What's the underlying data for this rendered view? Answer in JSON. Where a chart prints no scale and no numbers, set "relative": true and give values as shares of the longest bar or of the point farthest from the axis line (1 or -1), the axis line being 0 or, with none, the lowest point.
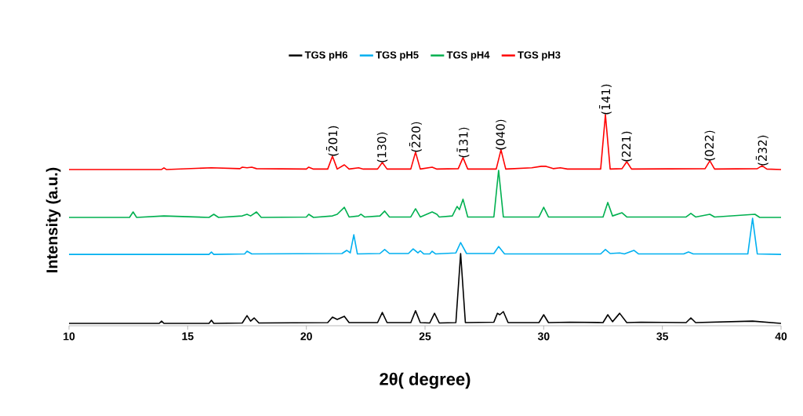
{
  "chart_data": {
    "type": "line",
    "relative": true,
    "xlabel": "2θ( degree)",
    "ylabel": "Intensity (a.u.)",
    "xlim": [
      10,
      40
    ],
    "xticks": [
      10,
      15,
      20,
      25,
      30,
      35,
      40
    ],
    "legend": "top",
    "grid": false,
    "marker": "none",
    "line_style": "solid",
    "series": [
      {
        "name": "TGS pH6",
        "color": "#000000",
        "x": [
          10,
          13.8,
          13.9,
          14.0,
          15.9,
          16.0,
          16.1,
          17.3,
          17.5,
          17.65,
          17.8,
          18.0,
          20.9,
          21.1,
          21.3,
          21.6,
          21.8,
          23.0,
          23.2,
          23.4,
          24.4,
          24.6,
          24.8,
          25.2,
          25.4,
          25.6,
          26.3,
          26.5,
          26.7,
          27.9,
          28.05,
          28.15,
          28.3,
          28.5,
          29.8,
          30.0,
          30.2,
          31.1,
          32.5,
          32.7,
          32.9,
          33.2,
          33.5,
          34.1,
          36.0,
          36.2,
          36.4,
          38.8,
          40
        ],
        "values": [
          0.011,
          0.011,
          0.022,
          0.011,
          0.011,
          0.026,
          0.011,
          0.013,
          0.048,
          0.022,
          0.037,
          0.013,
          0.015,
          0.041,
          0.03,
          0.045,
          0.015,
          0.015,
          0.063,
          0.015,
          0.015,
          0.071,
          0.015,
          0.013,
          0.059,
          0.013,
          0.015,
          0.342,
          0.015,
          0.017,
          0.059,
          0.052,
          0.067,
          0.015,
          0.015,
          0.052,
          0.015,
          0.017,
          0.015,
          0.052,
          0.019,
          0.059,
          0.015,
          0.017,
          0.015,
          0.037,
          0.015,
          0.022,
          0.011
        ]
      },
      {
        "name": "TGS pH5",
        "color": "#00b0f0",
        "x": [
          10,
          15.9,
          16.0,
          16.1,
          17.4,
          17.5,
          17.7,
          21.5,
          21.7,
          21.85,
          22.0,
          22.15,
          23.1,
          23.3,
          23.5,
          24.3,
          24.5,
          24.7,
          24.8,
          24.95,
          25.2,
          25.3,
          25.45,
          26.3,
          26.5,
          26.75,
          27.9,
          28.1,
          28.35,
          32.4,
          32.6,
          32.8,
          33.2,
          33.4,
          33.8,
          34.0,
          35.9,
          36.1,
          36.3,
          38.6,
          38.8,
          39.0,
          40
        ],
        "values": [
          0.338,
          0.338,
          0.349,
          0.338,
          0.34,
          0.353,
          0.34,
          0.342,
          0.357,
          0.345,
          0.431,
          0.34,
          0.342,
          0.361,
          0.342,
          0.342,
          0.364,
          0.345,
          0.355,
          0.34,
          0.34,
          0.353,
          0.34,
          0.345,
          0.394,
          0.342,
          0.342,
          0.375,
          0.34,
          0.34,
          0.361,
          0.342,
          0.345,
          0.34,
          0.357,
          0.34,
          0.34,
          0.349,
          0.34,
          0.34,
          0.509,
          0.34,
          0.338
        ]
      },
      {
        "name": "TGS pH4",
        "color": "#00b050",
        "x": [
          10,
          12.55,
          12.7,
          12.85,
          14.0,
          15.9,
          16.1,
          16.3,
          17.3,
          17.5,
          17.65,
          17.9,
          18.1,
          20.0,
          20.1,
          20.3,
          21.1,
          21.3,
          21.6,
          21.8,
          22.2,
          22.3,
          22.45,
          23.1,
          23.3,
          23.5,
          24.4,
          24.6,
          24.8,
          25.3,
          25.5,
          25.6,
          26.15,
          26.35,
          26.45,
          26.6,
          26.8,
          27.9,
          28.1,
          28.3,
          29.8,
          30.0,
          30.2,
          32.5,
          32.7,
          32.9,
          33.3,
          33.5,
          36.0,
          36.2,
          36.4,
          37.0,
          37.2,
          38.9,
          39.1,
          40
        ],
        "values": [
          0.513,
          0.513,
          0.539,
          0.513,
          0.52,
          0.513,
          0.528,
          0.513,
          0.52,
          0.528,
          0.52,
          0.539,
          0.513,
          0.515,
          0.528,
          0.513,
          0.52,
          0.528,
          0.561,
          0.515,
          0.52,
          0.528,
          0.515,
          0.52,
          0.543,
          0.515,
          0.515,
          0.554,
          0.515,
          0.539,
          0.528,
          0.515,
          0.52,
          0.565,
          0.55,
          0.599,
          0.515,
          0.515,
          0.736,
          0.515,
          0.515,
          0.561,
          0.515,
          0.515,
          0.584,
          0.52,
          0.535,
          0.515,
          0.515,
          0.532,
          0.515,
          0.528,
          0.515,
          0.528,
          0.513,
          0.513
        ]
      },
      {
        "name": "TGS pH3",
        "color": "#ff0000",
        "x": [
          10,
          13.9,
          14.0,
          14.1,
          16.0,
          17.2,
          17.3,
          17.5,
          17.7,
          17.9,
          20.0,
          20.1,
          20.3,
          20.9,
          21.1,
          21.3,
          21.6,
          21.8,
          22.2,
          22.4,
          23.0,
          23.2,
          23.4,
          24.4,
          24.6,
          24.8,
          25.3,
          25.5,
          26.4,
          26.6,
          26.8,
          28.0,
          28.2,
          28.4,
          29.5,
          29.9,
          30.1,
          30.4,
          30.7,
          31.0,
          32.4,
          32.6,
          32.8,
          33.3,
          33.5,
          33.7,
          36.8,
          37.0,
          37.2,
          39.0,
          39.2,
          39.4,
          40
        ],
        "values": [
          0.74,
          0.74,
          0.748,
          0.74,
          0.748,
          0.744,
          0.751,
          0.748,
          0.751,
          0.744,
          0.742,
          0.751,
          0.742,
          0.742,
          0.803,
          0.742,
          0.762,
          0.742,
          0.748,
          0.742,
          0.742,
          0.773,
          0.742,
          0.742,
          0.822,
          0.742,
          0.751,
          0.742,
          0.744,
          0.796,
          0.742,
          0.742,
          0.833,
          0.742,
          0.748,
          0.755,
          0.755,
          0.744,
          0.748,
          0.742,
          0.742,
          1.0,
          0.742,
          0.744,
          0.777,
          0.742,
          0.744,
          0.781,
          0.742,
          0.744,
          0.758,
          0.742,
          0.74
        ]
      }
    ],
    "annotations": [
      {
        "text": "(2̄01)",
        "x": 21.1,
        "y": 0.803
      },
      {
        "text": "(130)",
        "x": 23.2,
        "y": 0.773
      },
      {
        "text": "(2̄20)",
        "x": 24.6,
        "y": 0.822
      },
      {
        "text": "(1̄31)",
        "x": 26.6,
        "y": 0.796
      },
      {
        "text": "(040)",
        "x": 28.2,
        "y": 0.833
      },
      {
        "text": "(1̄41)",
        "x": 32.6,
        "y": 1.0
      },
      {
        "text": "(221)",
        "x": 33.5,
        "y": 0.777
      },
      {
        "text": "(022)",
        "x": 37.0,
        "y": 0.781
      },
      {
        "text": "(2̄32)",
        "x": 39.2,
        "y": 0.758
      }
    ]
  }
}
